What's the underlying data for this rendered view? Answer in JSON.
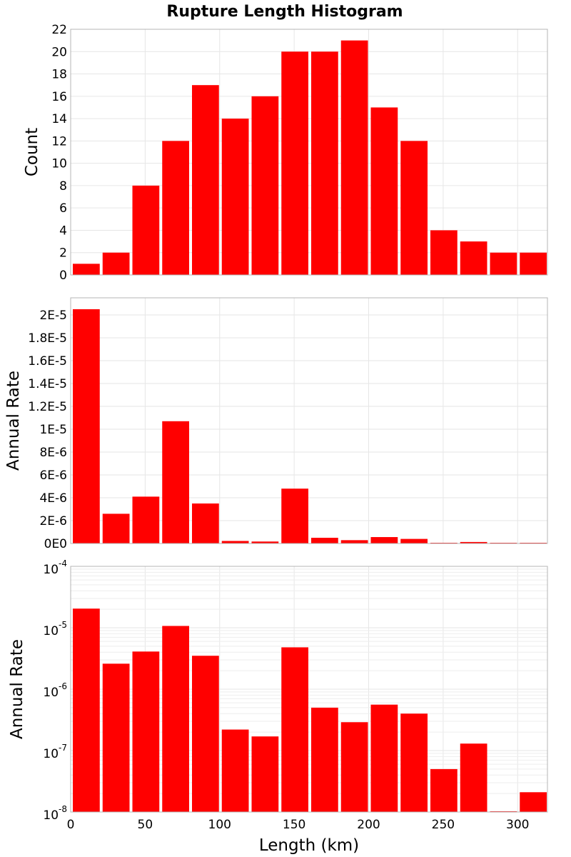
{
  "chart_data": {
    "title": "Rupture Length Histogram",
    "xlabel": "Length (km)",
    "x_ticks": [
      "0",
      "50",
      "100",
      "150",
      "200",
      "250",
      "300"
    ],
    "xlim": [
      0,
      320
    ],
    "bin_width": 20,
    "bin_starts": [
      0,
      20,
      40,
      60,
      80,
      100,
      120,
      140,
      160,
      180,
      200,
      220,
      240,
      260,
      280,
      300
    ],
    "bar_color": "#ff0000",
    "panels": [
      {
        "type": "bar",
        "ylabel": "Count",
        "y_scale": "linear",
        "ylim": [
          0,
          22
        ],
        "y_ticks": [
          0,
          2,
          4,
          6,
          8,
          10,
          12,
          14,
          16,
          18,
          20,
          22
        ],
        "y_tick_labels": [
          "0",
          "2",
          "4",
          "6",
          "8",
          "10",
          "12",
          "14",
          "16",
          "18",
          "20",
          "22"
        ],
        "values": [
          1,
          2,
          8,
          12,
          17,
          14,
          16,
          20,
          20,
          21,
          15,
          12,
          4,
          3,
          2,
          2
        ]
      },
      {
        "type": "bar",
        "ylabel": "Annual Rate",
        "y_scale": "linear",
        "ylim": [
          0,
          2.15e-05
        ],
        "y_ticks": [
          0,
          2e-06,
          4e-06,
          6e-06,
          8e-06,
          1e-05,
          1.2e-05,
          1.4e-05,
          1.6e-05,
          1.8e-05,
          2e-05
        ],
        "y_tick_labels": [
          "0E0",
          "2E-6",
          "4E-6",
          "6E-6",
          "8E-6",
          "1E-5",
          "1.2E-5",
          "1.4E-5",
          "1.6E-5",
          "1.8E-5",
          "2E-5"
        ],
        "values": [
          2.05e-05,
          2.6e-06,
          4.1e-06,
          1.07e-05,
          3.5e-06,
          2.2e-07,
          1.7e-07,
          4.8e-06,
          5e-07,
          2.9e-07,
          5.6e-07,
          4e-07,
          5e-08,
          1.3e-07,
          1e-08,
          2.1e-08
        ]
      },
      {
        "type": "bar",
        "ylabel": "Annual Rate",
        "y_scale": "log",
        "ylim": [
          1e-08,
          0.0001
        ],
        "y_tick_exponents": [
          -8,
          -7,
          -6,
          -5,
          -4
        ],
        "y_tick_base": "10",
        "values": [
          2.05e-05,
          2.6e-06,
          4.1e-06,
          1.07e-05,
          3.5e-06,
          2.2e-07,
          1.7e-07,
          4.8e-06,
          5e-07,
          2.9e-07,
          5.6e-07,
          4e-07,
          5e-08,
          1.3e-07,
          1e-08,
          2.1e-08
        ]
      }
    ]
  }
}
